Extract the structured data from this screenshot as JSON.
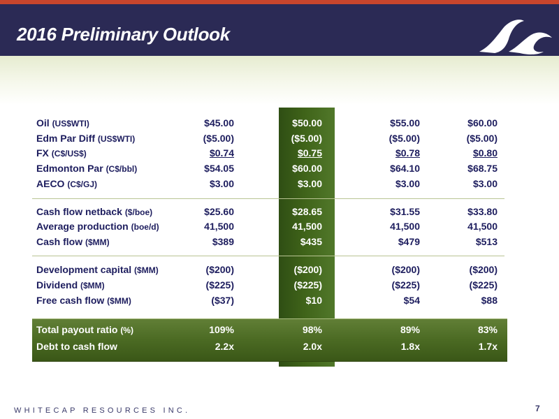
{
  "title": "2016 Preliminary Outlook",
  "footer": "WHITECAP RESOURCES INC.",
  "page_number": "7",
  "colors": {
    "header_bg": "#2b2a55",
    "accent_strip": "#c8452c",
    "text": "#1d1d5e",
    "highlight": "#3f6319"
  },
  "logo_icon": "whitecap-wave-logo-icon",
  "rows": [
    {
      "label": "Oil",
      "unit": "(US$WTI)",
      "values": [
        "$45.00",
        "$50.00",
        "$55.00",
        "$60.00"
      ]
    },
    {
      "label": "Edm Par Diff",
      "unit": "(US$WTI)",
      "values": [
        "($5.00)",
        "($5.00)",
        "($5.00)",
        "($5.00)"
      ]
    },
    {
      "label": "FX",
      "unit": "(C$/US$)",
      "values": [
        "$0.74",
        "$0.75",
        "$0.78",
        "$0.80"
      ]
    },
    {
      "label": "Edmonton Par",
      "unit": "(C$/bbl)",
      "values": [
        "$54.05",
        "$60.00",
        "$64.10",
        "$68.75"
      ]
    },
    {
      "label": "AECO",
      "unit": "(C$/GJ)",
      "values": [
        "$3.00",
        "$3.00",
        "$3.00",
        "$3.00"
      ]
    },
    {
      "label": "Cash flow netback",
      "unit": "($/boe)",
      "values": [
        "$25.60",
        "$28.65",
        "$31.55",
        "$33.80"
      ]
    },
    {
      "label": "Average production",
      "unit": "(boe/d)",
      "values": [
        "41,500",
        "41,500",
        "41,500",
        "41,500"
      ]
    },
    {
      "label": "Cash flow",
      "unit": "($MM)",
      "values": [
        "$389",
        "$435",
        "$479",
        "$513"
      ]
    },
    {
      "label": "Development capital",
      "unit": "($MM)",
      "values": [
        "($200)",
        "($200)",
        "($200)",
        "($200)"
      ]
    },
    {
      "label": "Dividend",
      "unit": "($MM)",
      "values": [
        "($225)",
        "($225)",
        "($225)",
        "($225)"
      ]
    },
    {
      "label": "Free cash flow",
      "unit": "($MM)",
      "values": [
        "($37)",
        "$10",
        "$54",
        "$88"
      ]
    },
    {
      "label": "Total payout ratio",
      "unit": "(%)",
      "values": [
        "109%",
        "98%",
        "89%",
        "83%"
      ]
    },
    {
      "label": "Debt to cash flow",
      "unit": "",
      "values": [
        "2.2x",
        "2.0x",
        "1.8x",
        "1.7x"
      ]
    }
  ]
}
